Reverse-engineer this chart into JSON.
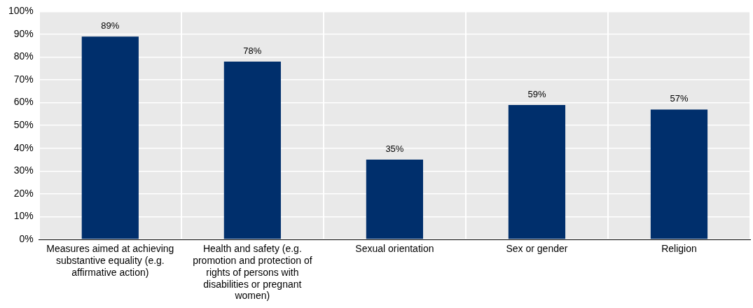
{
  "chart_data": {
    "type": "bar",
    "categories": [
      "Measures aimed at achieving substantive equality (e.g. affirmative action)",
      "Health and safety (e.g. promotion and protection of rights of persons with disabilities or pregnant women)",
      "Sexual orientation",
      "Sex or gender",
      "Religion"
    ],
    "values": [
      89,
      78,
      35,
      59,
      57
    ],
    "value_labels": [
      "89%",
      "78%",
      "35%",
      "59%",
      "57%"
    ],
    "color": "#002f6c",
    "ylim": [
      0,
      100
    ],
    "yticks": [
      {
        "value": 0,
        "label": "0%"
      },
      {
        "value": 10,
        "label": "10%"
      },
      {
        "value": 20,
        "label": "20%"
      },
      {
        "value": 30,
        "label": "30%"
      },
      {
        "value": 40,
        "label": "40%"
      },
      {
        "value": 50,
        "label": "50%"
      },
      {
        "value": 60,
        "label": "60%"
      },
      {
        "value": 70,
        "label": "70%"
      },
      {
        "value": 80,
        "label": "80%"
      },
      {
        "value": 90,
        "label": "90%"
      },
      {
        "value": 100,
        "label": "100%"
      }
    ],
    "grid": true,
    "legend": false
  }
}
